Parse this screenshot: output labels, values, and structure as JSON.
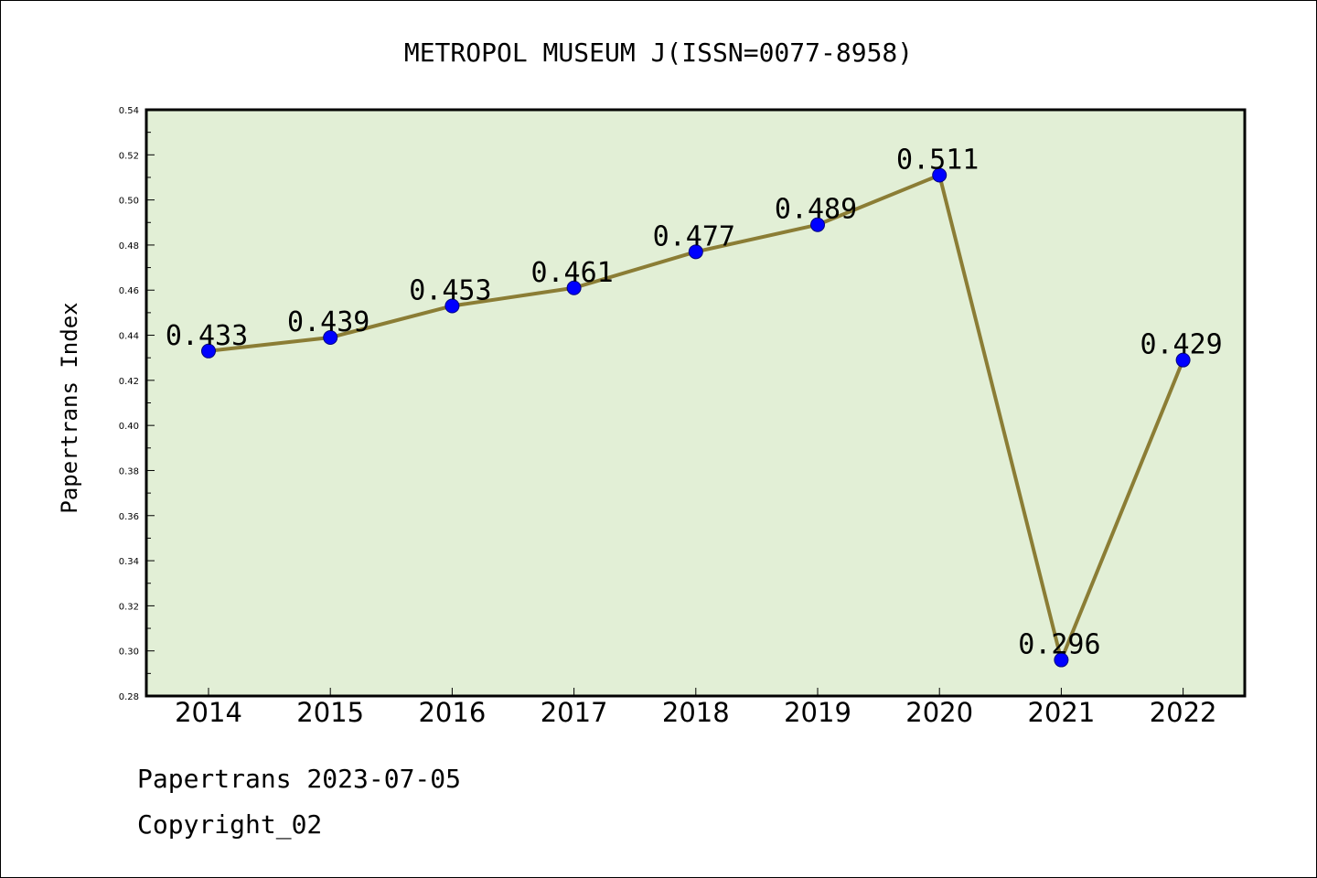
{
  "chart_data": {
    "type": "line",
    "title": "METROPOL MUSEUM J(ISSN=0077-8958)",
    "ylabel": "Papertrans Index",
    "xlabel": "",
    "categories": [
      "2014",
      "2015",
      "2016",
      "2017",
      "2018",
      "2019",
      "2020",
      "2021",
      "2022"
    ],
    "series": [
      {
        "values": [
          0.433,
          0.439,
          0.453,
          0.461,
          0.477,
          0.489,
          0.511,
          0.296,
          0.429
        ],
        "labels": [
          "0.433",
          "0.439",
          "0.453",
          "0.461",
          "0.477",
          "0.489",
          "0.511",
          "0.296",
          "0.429"
        ]
      }
    ],
    "ylim": [
      0.28,
      0.54
    ],
    "yticks": [
      "0.28",
      "0.30",
      "0.32",
      "0.34",
      "0.36",
      "0.38",
      "0.40",
      "0.42",
      "0.44",
      "0.46",
      "0.48",
      "0.50",
      "0.52",
      "0.54"
    ],
    "grid": false,
    "legend": "none"
  },
  "colors": {
    "plot_background": "#e2efd6",
    "line": "#8b7d35",
    "marker": "#0000ff",
    "axis": "#000000"
  },
  "footer": {
    "date_text": "Papertrans 2023-07-05",
    "copyright_text": "Copyright_02"
  }
}
